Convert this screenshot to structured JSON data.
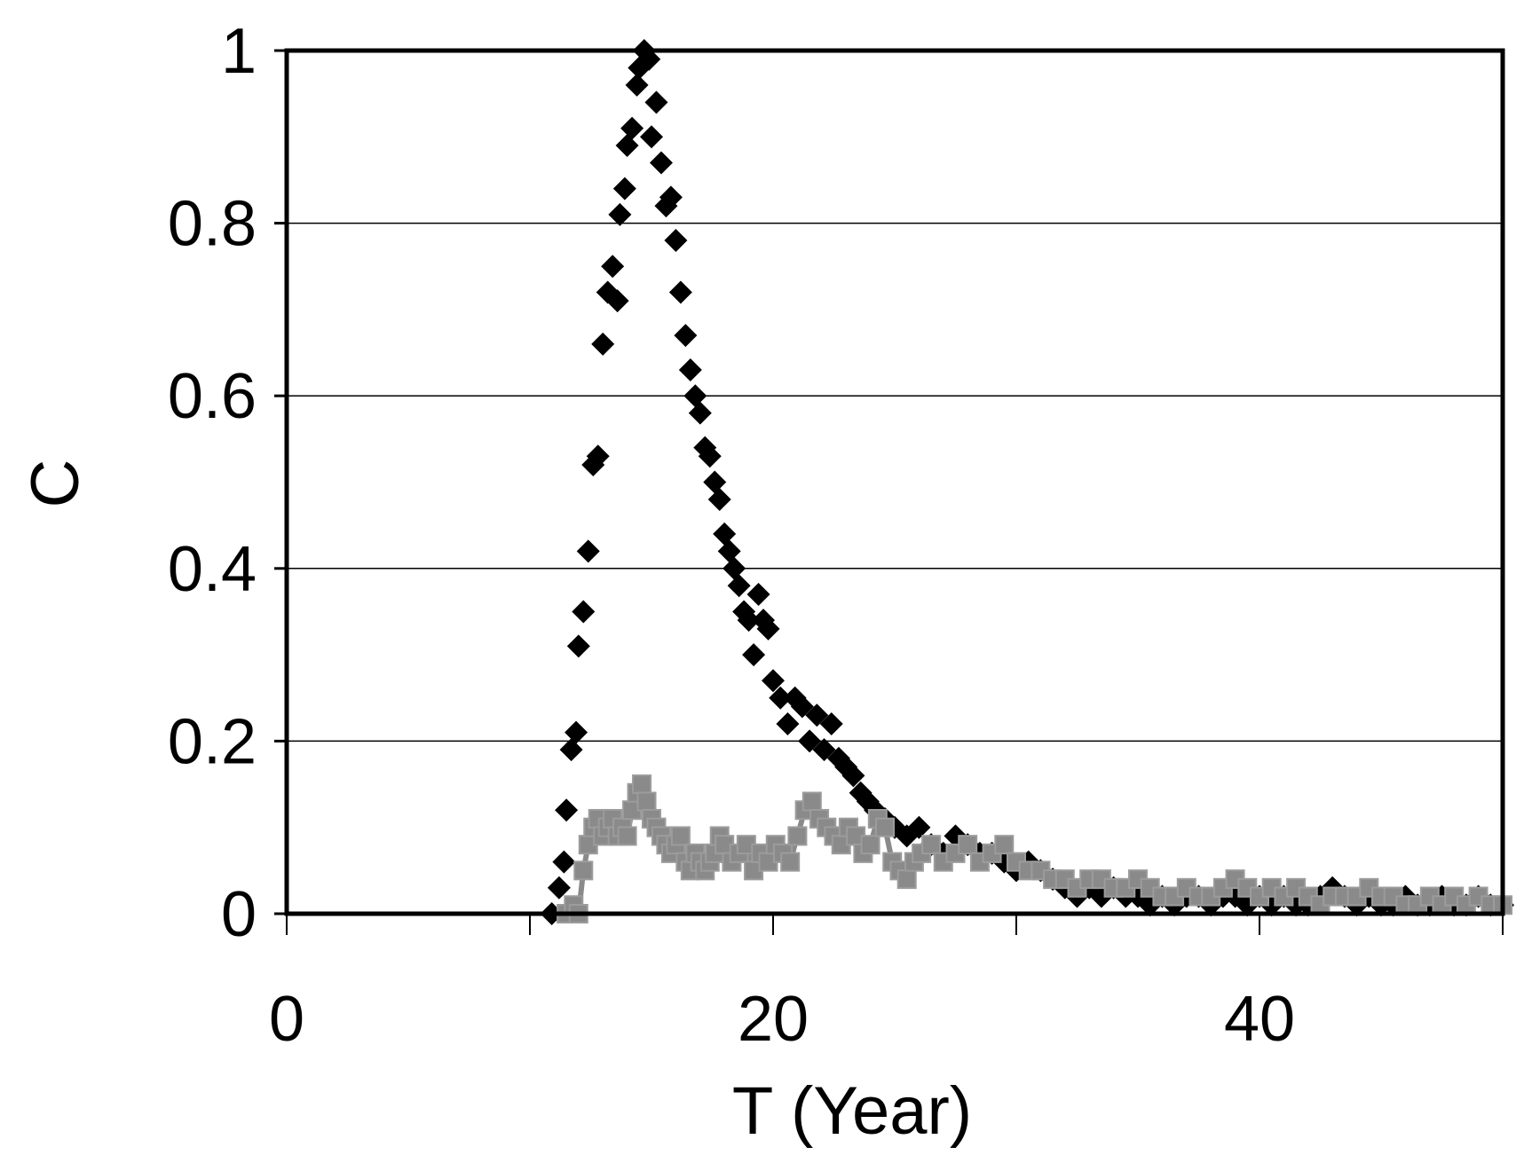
{
  "chart_data": {
    "type": "scatter",
    "title": "",
    "xlabel": "T (Year)",
    "ylabel": "C",
    "xlim": [
      0,
      50
    ],
    "ylim": [
      0,
      1
    ],
    "xticks": [
      0,
      20,
      40
    ],
    "xtick_labels": [
      "0",
      "20",
      "40"
    ],
    "minor_xticks": [
      0,
      10,
      20,
      30,
      40,
      50
    ],
    "yticks": [
      0,
      0.2,
      0.4,
      0.6,
      0.8,
      1
    ],
    "ytick_labels": [
      "0",
      "0.2",
      "0.4",
      "0.6",
      "0.8",
      "1"
    ],
    "grid": "horizontal",
    "legend": "none",
    "series": [
      {
        "marker": "diamond",
        "color": "#000000",
        "x": [
          10.9,
          11.2,
          11.4,
          11.5,
          11.7,
          11.9,
          12.0,
          12.2,
          12.4,
          12.6,
          12.8,
          13.0,
          13.2,
          13.4,
          13.6,
          13.7,
          13.9,
          14.0,
          14.2,
          14.4,
          14.5,
          14.7,
          14.9,
          15.0,
          15.2,
          15.4,
          15.6,
          15.8,
          16.0,
          16.2,
          16.4,
          16.6,
          16.8,
          17.0,
          17.2,
          17.4,
          17.6,
          17.8,
          18.0,
          18.2,
          18.4,
          18.6,
          18.8,
          19.0,
          19.2,
          19.4,
          19.6,
          19.8,
          20.0,
          20.3,
          20.6,
          20.9,
          21.2,
          21.5,
          21.8,
          22.1,
          22.4,
          22.7,
          23.0,
          23.3,
          23.6,
          23.9,
          24.2,
          24.6,
          25.0,
          25.5,
          26.0,
          26.5,
          27.0,
          27.5,
          28.0,
          28.5,
          29.0,
          29.5,
          30.0,
          30.5,
          31.0,
          31.5,
          32.0,
          32.5,
          33.0,
          33.5,
          34.0,
          34.5,
          35.0,
          35.5,
          36.0,
          36.5,
          37.0,
          37.5,
          38.0,
          38.5,
          39.0,
          39.5,
          40.0,
          40.5,
          41.0,
          41.5,
          42.0,
          42.5,
          43.0,
          43.5,
          44.0,
          44.5,
          45.0,
          45.5,
          46.0,
          46.5,
          47.0,
          47.5,
          48.0,
          48.5,
          49.0,
          49.5,
          50.0
        ],
        "y": [
          0.0,
          0.03,
          0.06,
          0.12,
          0.19,
          0.21,
          0.31,
          0.35,
          0.42,
          0.52,
          0.53,
          0.66,
          0.72,
          0.75,
          0.71,
          0.81,
          0.84,
          0.89,
          0.91,
          0.96,
          0.98,
          1.0,
          0.99,
          0.9,
          0.94,
          0.87,
          0.82,
          0.83,
          0.78,
          0.72,
          0.67,
          0.63,
          0.6,
          0.58,
          0.54,
          0.53,
          0.5,
          0.48,
          0.44,
          0.42,
          0.4,
          0.38,
          0.35,
          0.34,
          0.3,
          0.37,
          0.34,
          0.33,
          0.27,
          0.25,
          0.22,
          0.25,
          0.24,
          0.2,
          0.23,
          0.19,
          0.22,
          0.18,
          0.17,
          0.16,
          0.14,
          0.13,
          0.12,
          0.11,
          0.1,
          0.09,
          0.1,
          0.08,
          0.07,
          0.09,
          0.08,
          0.07,
          0.07,
          0.06,
          0.05,
          0.06,
          0.05,
          0.04,
          0.03,
          0.02,
          0.03,
          0.02,
          0.03,
          0.02,
          0.02,
          0.01,
          0.02,
          0.01,
          0.02,
          0.02,
          0.01,
          0.02,
          0.02,
          0.01,
          0.02,
          0.01,
          0.02,
          0.01,
          0.01,
          0.02,
          0.03,
          0.02,
          0.01,
          0.02,
          0.01,
          0.01,
          0.02,
          0.01,
          0.01,
          0.02,
          0.01,
          0.01,
          0.02,
          0.01,
          0.01
        ]
      },
      {
        "marker": "square",
        "color": "#8a8a8a",
        "x": [
          11.5,
          11.8,
          12.0,
          12.2,
          12.4,
          12.6,
          12.8,
          13.0,
          13.2,
          13.4,
          13.6,
          13.8,
          14.0,
          14.2,
          14.4,
          14.6,
          14.8,
          15.0,
          15.2,
          15.4,
          15.6,
          15.8,
          16.0,
          16.2,
          16.4,
          16.6,
          16.8,
          17.0,
          17.2,
          17.4,
          17.6,
          17.8,
          18.0,
          18.3,
          18.6,
          18.9,
          19.2,
          19.5,
          19.8,
          20.1,
          20.4,
          20.7,
          21.0,
          21.3,
          21.6,
          21.9,
          22.2,
          22.5,
          22.8,
          23.1,
          23.4,
          23.7,
          24.0,
          24.3,
          24.6,
          24.9,
          25.2,
          25.5,
          25.8,
          26.1,
          26.5,
          27.0,
          27.5,
          28.0,
          28.5,
          29.0,
          29.5,
          30.0,
          30.5,
          31.0,
          31.5,
          32.0,
          32.5,
          33.0,
          33.5,
          34.0,
          34.5,
          35.0,
          35.5,
          36.0,
          36.5,
          37.0,
          37.5,
          38.0,
          38.5,
          39.0,
          39.5,
          40.0,
          40.5,
          41.0,
          41.5,
          42.0,
          42.5,
          43.0,
          43.5,
          44.0,
          44.5,
          45.0,
          45.5,
          46.0,
          46.5,
          47.0,
          47.5,
          48.0,
          48.5,
          49.0,
          49.5,
          50.0
        ],
        "y": [
          0.0,
          0.01,
          0.0,
          0.05,
          0.08,
          0.1,
          0.11,
          0.09,
          0.1,
          0.11,
          0.09,
          0.1,
          0.09,
          0.12,
          0.14,
          0.15,
          0.13,
          0.11,
          0.1,
          0.09,
          0.08,
          0.07,
          0.08,
          0.09,
          0.06,
          0.05,
          0.07,
          0.06,
          0.05,
          0.06,
          0.07,
          0.09,
          0.08,
          0.06,
          0.07,
          0.08,
          0.05,
          0.07,
          0.06,
          0.08,
          0.07,
          0.06,
          0.09,
          0.12,
          0.13,
          0.11,
          0.1,
          0.09,
          0.08,
          0.1,
          0.09,
          0.07,
          0.08,
          0.11,
          0.1,
          0.06,
          0.05,
          0.04,
          0.06,
          0.07,
          0.08,
          0.06,
          0.07,
          0.08,
          0.06,
          0.07,
          0.08,
          0.06,
          0.05,
          0.05,
          0.04,
          0.04,
          0.03,
          0.04,
          0.04,
          0.03,
          0.03,
          0.04,
          0.03,
          0.02,
          0.02,
          0.03,
          0.02,
          0.02,
          0.03,
          0.04,
          0.03,
          0.02,
          0.03,
          0.02,
          0.03,
          0.02,
          0.01,
          0.02,
          0.02,
          0.02,
          0.03,
          0.02,
          0.02,
          0.01,
          0.01,
          0.02,
          0.01,
          0.02,
          0.01,
          0.02,
          0.01,
          0.01
        ]
      }
    ]
  }
}
